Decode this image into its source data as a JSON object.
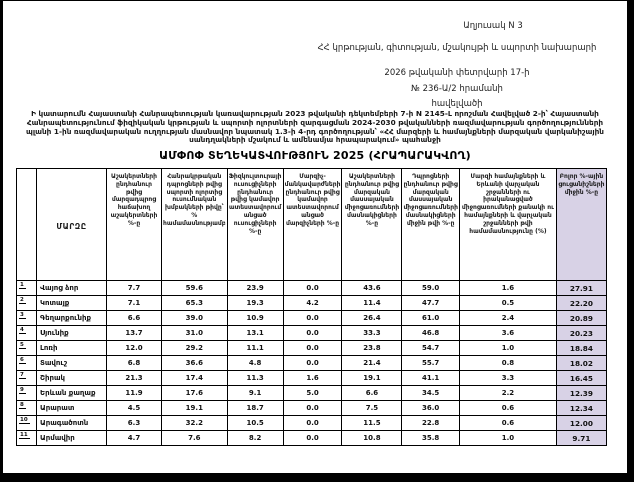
{
  "document": {
    "annex_label": "Աղյուսակ N 3",
    "authority_line": "ՀՀ կրթության, գիտության, մշակույթի և սպորտի նախարարի",
    "order_date_line": "2026 թվականի փետրվարի 17-ի",
    "order_number_line": "№ 236-Ա/2 հրամանի",
    "annex_word": "հավելվածի",
    "preamble": "Ի կատարումն Հայաստանի Հանրապետության կառավարության 2023 թվականի դեկտեմբերի 7-ի N 2145-Լ որոշման Հավելված 2-ի՝ Հայաստանի Հանրապետությունում ֆիզիկական կրթության և սպորտի ոլորտների զարգացման 2024-2030 թվականների ռազմավարության գործողությունների պլանի 1-ին ռազմավարական ուղղության մասնավոր նպատակ 1.3-ի 4-րդ գործողության՝ «ՀՀ մարզերի և համայնքների մարզական վարկանիշային սանդղակների մշակում և ամենամյա հրապարակում» պահանջի",
    "title": "ԱՄՓՈՓ ՏԵՂԵԿԱՏՎՈՒԹՅՈՒՆ 2025 (ՀՐԱՊԱՐԱԿՎՈՂ)"
  },
  "table": {
    "corner_header": "",
    "region_header": "ՄԱՐԶԸ",
    "columns": [
      "Աշակերտների ընդհանուր թվից մարզադպրոց հաճախող աշակերտների %-ը",
      "Հանրակրթական դպրոցների թվից սպորտի ոլորտից ուսումնական խմբակների թիվը՝ % համամասնությամբ",
      "Ֆիզկուլտուրայի ուսուցիչների ընդհանուր թվից կամավոր ատեստավորում անցած ուսուցիչների %-ը",
      "Մարզիչ-մանկավարժների ընդհանուր թվից կամավոր ատեստավորում անցած մարզիչների %-ը",
      "Աշակերտների ընդհանուր թվից մարզական մասսայական միջոցառումների մասնակիցների %-ը",
      "Դպրոցների ընդհանուր թվից մարզական մասսայական միջոցառումների մասնակիցների միջին թվի %-ը",
      "Մարզի համայնքների և Երևանի վարչական շրջանների ու իրականացված միջոցառումների քանակի ու համայնքների և վարչական շրջանների թվի համամասնությունը (%)",
      "Բոլոր %-ային ցուցանիշների միջին %-ը"
    ],
    "rows": [
      {
        "num": "1",
        "region": "Վայոց ձոր",
        "values": [
          "7.7",
          "59.6",
          "23.9",
          "0.0",
          "43.6",
          "59.0",
          "1.6",
          "27.91"
        ]
      },
      {
        "num": "2",
        "region": "Կոտայք",
        "values": [
          "7.1",
          "65.3",
          "19.3",
          "4.2",
          "11.4",
          "47.7",
          "0.5",
          "22.20"
        ]
      },
      {
        "num": "3",
        "region": "Գեղարքունիք",
        "values": [
          "6.6",
          "39.0",
          "10.9",
          "0.0",
          "26.4",
          "61.0",
          "2.4",
          "20.89"
        ]
      },
      {
        "num": "4",
        "region": "Սյունիք",
        "values": [
          "13.7",
          "31.0",
          "13.1",
          "0.0",
          "33.3",
          "46.8",
          "3.6",
          "20.23"
        ]
      },
      {
        "num": "5",
        "region": "Լոռի",
        "values": [
          "12.0",
          "29.2",
          "11.1",
          "0.0",
          "23.8",
          "54.7",
          "1.0",
          "18.84"
        ]
      },
      {
        "num": "6",
        "region": "Տավուշ",
        "values": [
          "6.8",
          "36.6",
          "4.8",
          "0.0",
          "21.4",
          "55.7",
          "0.8",
          "18.02"
        ]
      },
      {
        "num": "7",
        "region": "Շիրակ",
        "values": [
          "21.3",
          "17.4",
          "11.3",
          "1.6",
          "19.1",
          "41.1",
          "3.3",
          "16.45"
        ]
      },
      {
        "num": "9",
        "region": "Երևան քաղաք",
        "values": [
          "11.9",
          "17.6",
          "9.1",
          "5.0",
          "6.6",
          "34.5",
          "2.2",
          "12.39"
        ]
      },
      {
        "num": "8",
        "region": "Արարատ",
        "values": [
          "4.5",
          "19.1",
          "18.7",
          "0.0",
          "7.5",
          "36.0",
          "0.6",
          "12.34"
        ]
      },
      {
        "num": "10",
        "region": "Արագածոտն",
        "values": [
          "6.3",
          "32.2",
          "10.5",
          "0.0",
          "11.5",
          "22.8",
          "0.6",
          "12.00"
        ]
      },
      {
        "num": "11",
        "region": "Արմավիր",
        "values": [
          "4.7",
          "7.6",
          "8.2",
          "0.0",
          "10.8",
          "35.8",
          "1.0",
          "9.71"
        ]
      }
    ],
    "colors": {
      "highlight": "#d8d2e6",
      "border": "#000000",
      "text": "#111111"
    }
  }
}
